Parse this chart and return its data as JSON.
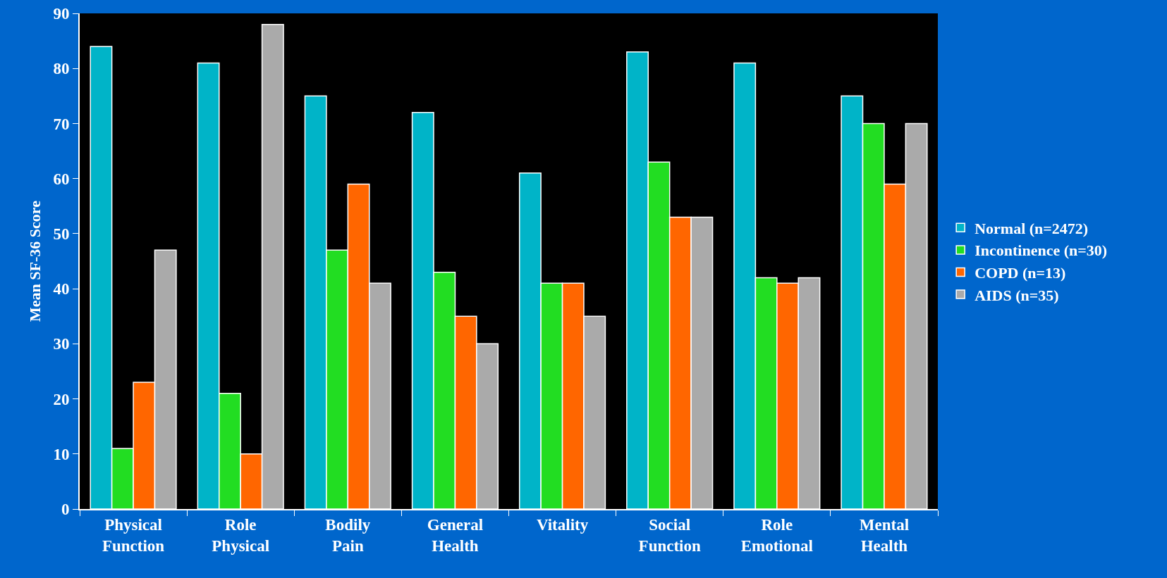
{
  "chart_data": {
    "type": "bar",
    "ylabel": "Mean SF-36 Score",
    "categories": [
      "Physical Function",
      "Role Physical",
      "Bodily Pain",
      "General Health",
      "Vitality",
      "Social Function",
      "Role Emotional",
      "Mental Health"
    ],
    "series": [
      {
        "name": "Normal (n=2472)",
        "color": "#00b4c8",
        "values": [
          84,
          81,
          75,
          72,
          61,
          83,
          81,
          75
        ]
      },
      {
        "name": "Incontinence (n=30)",
        "color": "#22dd22",
        "values": [
          11,
          21,
          47,
          43,
          41,
          63,
          42,
          70
        ]
      },
      {
        "name": "COPD (n=13)",
        "color": "#ff6600",
        "values": [
          23,
          10,
          59,
          35,
          41,
          53,
          41,
          59
        ]
      },
      {
        "name": "AIDS (n=35)",
        "color": "#aaaaaa",
        "values": [
          47,
          88,
          41,
          30,
          35,
          53,
          42,
          70
        ]
      }
    ],
    "ylim": [
      0,
      90
    ],
    "yticks": [
      0,
      10,
      20,
      30,
      40,
      50,
      60,
      70,
      80,
      90
    ],
    "grid": false,
    "legend": "right"
  }
}
